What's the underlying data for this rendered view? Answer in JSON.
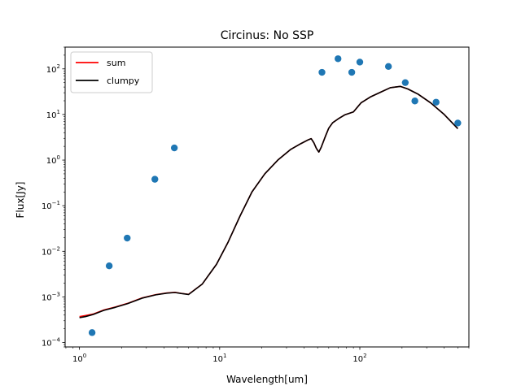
{
  "chart_data": {
    "type": "line",
    "title": "Circinus: No SSP",
    "xlabel": "Wavelength[um]",
    "ylabel": "Flux[Jy]",
    "xscale": "log",
    "yscale": "log",
    "xlim": [
      0.79,
      600
    ],
    "ylim": [
      8e-05,
      300
    ],
    "grid": false,
    "legend_position": "upper-left",
    "x_ticks": [
      {
        "value": 1,
        "base": "10",
        "exp": "0"
      },
      {
        "value": 10,
        "base": "10",
        "exp": "1"
      },
      {
        "value": 100,
        "base": "10",
        "exp": "2"
      }
    ],
    "y_ticks": [
      {
        "value": 0.0001,
        "base": "10",
        "exp": "−4"
      },
      {
        "value": 0.001,
        "base": "10",
        "exp": "−3"
      },
      {
        "value": 0.01,
        "base": "10",
        "exp": "−2"
      },
      {
        "value": 0.1,
        "base": "10",
        "exp": "−1"
      },
      {
        "value": 1,
        "base": "10",
        "exp": "0"
      },
      {
        "value": 10,
        "base": "10",
        "exp": "1"
      },
      {
        "value": 100,
        "base": "10",
        "exp": "2"
      }
    ],
    "series": [
      {
        "name": "sum",
        "kind": "line",
        "color": "#ff0000",
        "points": [
          [
            1.0,
            0.00037
          ],
          [
            1.1,
            0.00039
          ],
          [
            1.25,
            0.00042
          ],
          [
            1.5,
            0.00052
          ],
          [
            1.8,
            0.0006
          ],
          [
            2.2,
            0.00072
          ],
          [
            2.8,
            0.00095
          ],
          [
            3.5,
            0.00112
          ],
          [
            4.2,
            0.00122
          ],
          [
            4.8,
            0.00126
          ],
          [
            5.3,
            0.0012
          ],
          [
            6.0,
            0.00114
          ],
          [
            7.5,
            0.0019
          ],
          [
            9.5,
            0.0052
          ],
          [
            11.5,
            0.016
          ],
          [
            14,
            0.06
          ],
          [
            17,
            0.2
          ],
          [
            21,
            0.5
          ],
          [
            26,
            1.0
          ],
          [
            32,
            1.7
          ],
          [
            38,
            2.3
          ],
          [
            43,
            2.8
          ],
          [
            45,
            2.95
          ],
          [
            47,
            2.4
          ],
          [
            49,
            1.8
          ],
          [
            51,
            1.5
          ],
          [
            53,
            1.9
          ],
          [
            57,
            3.4
          ],
          [
            60,
            5.0
          ],
          [
            64,
            6.6
          ],
          [
            70,
            8.0
          ],
          [
            78,
            9.8
          ],
          [
            90,
            11.4
          ],
          [
            102,
            18
          ],
          [
            120,
            24.6
          ],
          [
            140,
            30.6
          ],
          [
            165,
            38.7
          ],
          [
            195,
            41.3
          ],
          [
            220,
            36.3
          ],
          [
            260,
            28
          ],
          [
            320,
            18
          ],
          [
            400,
            10
          ],
          [
            500,
            4.9
          ]
        ]
      },
      {
        "name": "clumpy",
        "kind": "line",
        "color": "#000000",
        "points": [
          [
            1.0,
            0.00035
          ],
          [
            1.1,
            0.00037
          ],
          [
            1.25,
            0.00041
          ],
          [
            1.5,
            0.00051
          ],
          [
            1.8,
            0.00059
          ],
          [
            2.2,
            0.00071
          ],
          [
            2.8,
            0.00094
          ],
          [
            3.5,
            0.00111
          ],
          [
            4.2,
            0.00121
          ],
          [
            4.8,
            0.00125
          ],
          [
            5.3,
            0.00119
          ],
          [
            6.0,
            0.00113
          ],
          [
            7.5,
            0.0019
          ],
          [
            9.5,
            0.0052
          ],
          [
            11.5,
            0.016
          ],
          [
            14,
            0.06
          ],
          [
            17,
            0.2
          ],
          [
            21,
            0.5
          ],
          [
            26,
            1.0
          ],
          [
            32,
            1.7
          ],
          [
            38,
            2.3
          ],
          [
            43,
            2.8
          ],
          [
            45,
            2.95
          ],
          [
            47,
            2.4
          ],
          [
            49,
            1.8
          ],
          [
            51,
            1.5
          ],
          [
            53,
            1.9
          ],
          [
            57,
            3.4
          ],
          [
            60,
            5.0
          ],
          [
            64,
            6.6
          ],
          [
            70,
            8.0
          ],
          [
            78,
            9.8
          ],
          [
            90,
            11.4
          ],
          [
            102,
            18
          ],
          [
            120,
            24.6
          ],
          [
            140,
            30.6
          ],
          [
            165,
            38.7
          ],
          [
            195,
            41.3
          ],
          [
            220,
            36.3
          ],
          [
            260,
            28
          ],
          [
            320,
            18
          ],
          [
            400,
            10
          ],
          [
            500,
            4.9
          ]
        ]
      },
      {
        "kind": "scatter",
        "color": "#1f77b4",
        "points": [
          [
            1.23,
            0.000165
          ],
          [
            1.63,
            0.0048
          ],
          [
            2.19,
            0.0195
          ],
          [
            3.45,
            0.38
          ],
          [
            4.75,
            1.85
          ],
          [
            53.7,
            84
          ],
          [
            69.9,
            167
          ],
          [
            87.6,
            84
          ],
          [
            100,
            141
          ],
          [
            160,
            113
          ],
          [
            211,
            50
          ],
          [
            247,
            19.8
          ],
          [
            350,
            18.6
          ],
          [
            500,
            6.5
          ]
        ]
      }
    ]
  }
}
